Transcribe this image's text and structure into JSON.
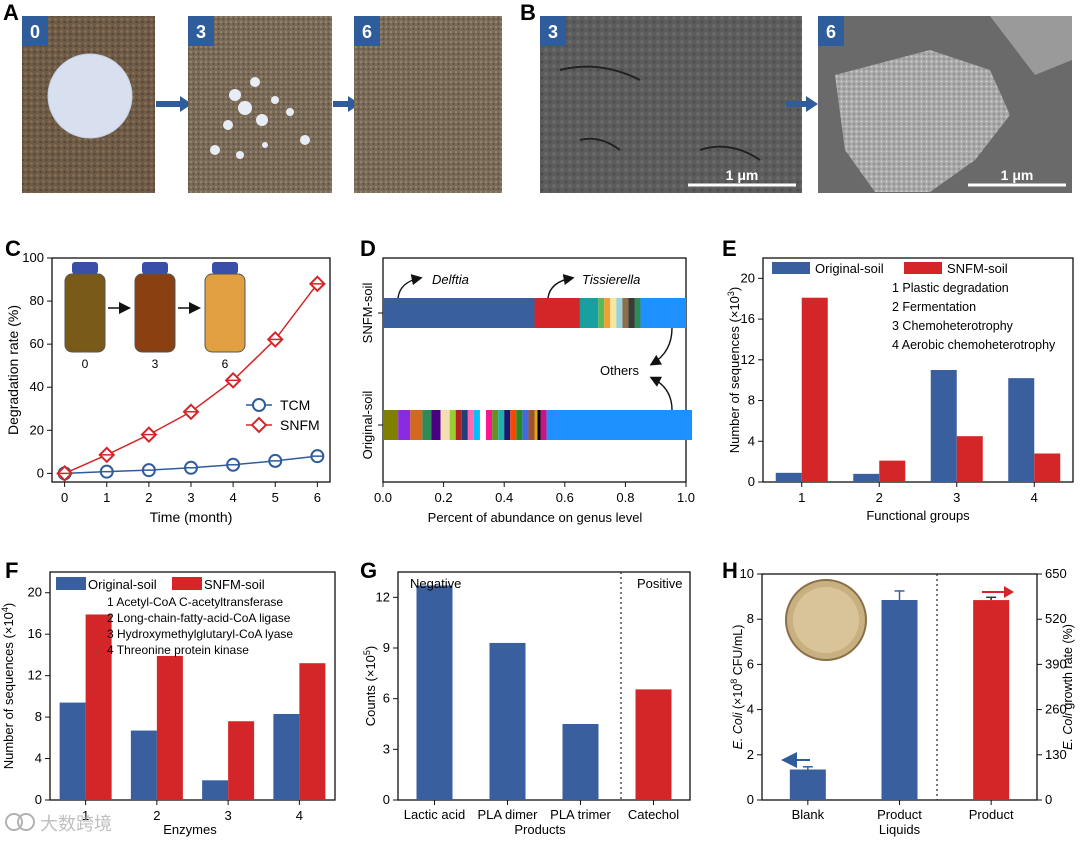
{
  "panel_labels": {
    "A": "A",
    "B": "B",
    "C": "C",
    "D": "D",
    "E": "E",
    "F": "F",
    "G": "G",
    "H": "H"
  },
  "photos": {
    "A": [
      {
        "label": "0"
      },
      {
        "label": "3"
      },
      {
        "label": "6"
      }
    ],
    "B": [
      {
        "label": "3",
        "scale": "1 μm"
      },
      {
        "label": "6",
        "scale": "1 μm"
      }
    ]
  },
  "colors": {
    "blue": "#3a5f9e",
    "red": "#d42628",
    "photo_label_bg": "#2f5c9a"
  },
  "watermark": "大数跨境",
  "chart_data": [
    {
      "panel": "C",
      "type": "line",
      "x": [
        0,
        1,
        2,
        3,
        4,
        5,
        6
      ],
      "series": [
        {
          "name": "TCM",
          "values": [
            0,
            0.8,
            1.5,
            2.6,
            4.0,
            5.8,
            8.0
          ],
          "color": "#2f5c9a",
          "marker": "circle"
        },
        {
          "name": "SNFM",
          "values": [
            0,
            8.6,
            18.0,
            28.6,
            43.2,
            62.2,
            88.0
          ],
          "color": "#d42628",
          "marker": "diamond"
        }
      ],
      "xlabel": "Time (month)",
      "ylabel": "Degradation rate (%)",
      "xlim": [
        -0.3,
        6.3
      ],
      "ylim": [
        -4,
        100
      ],
      "xticks": [
        0,
        1,
        2,
        3,
        4,
        5,
        6
      ],
      "yticks": [
        0,
        20,
        40,
        60,
        80,
        100
      ],
      "legend_position": "right",
      "inset_labels": [
        "0",
        "3",
        "6"
      ]
    },
    {
      "panel": "D",
      "type": "bar",
      "categories": [
        "SNFM-soil",
        "Original-soil"
      ],
      "xlabel": "Percent of abundance on genus level",
      "xlim": [
        0,
        1
      ],
      "xticks": [
        "0.0",
        "0.2",
        "0.4",
        "0.6",
        "0.8",
        "1.0"
      ],
      "annotations": [
        "Delftia",
        "Tissierella",
        "Others"
      ],
      "segments": {
        "SNFM-soil": [
          {
            "color": "#3a5f9e",
            "value": 0.5
          },
          {
            "color": "#d42628",
            "value": 0.15
          },
          {
            "color": "#18a0a0",
            "value": 0.06
          },
          {
            "color": "#5cb85c",
            "value": 0.02
          },
          {
            "color": "#f0a030",
            "value": 0.02
          },
          {
            "color": "#f5e79e",
            "value": 0.02
          },
          {
            "color": "#9ad0e0",
            "value": 0.02
          },
          {
            "color": "#8b6f47",
            "value": 0.02
          },
          {
            "color": "#3a3a3a",
            "value": 0.02
          },
          {
            "color": "#2e8b57",
            "value": 0.02
          },
          {
            "color": "#1e90ff",
            "value": 0.15
          }
        ],
        "Original-soil": [
          {
            "color": "#808000",
            "value": 0.05
          },
          {
            "color": "#8a2be2",
            "value": 0.04
          },
          {
            "color": "#d2691e",
            "value": 0.04
          },
          {
            "color": "#2e8b57",
            "value": 0.03
          },
          {
            "color": "#4b0082",
            "value": 0.03
          },
          {
            "color": "#f5deb3",
            "value": 0.03
          },
          {
            "color": "#9acd32",
            "value": 0.02
          },
          {
            "color": "#b22222",
            "value": 0.02
          },
          {
            "color": "#1e3f7a",
            "value": 0.02
          },
          {
            "color": "#ff69b4",
            "value": 0.02
          },
          {
            "color": "#00bfff",
            "value": 0.02
          },
          {
            "color": "#ffffff",
            "value": 0.02
          },
          {
            "color": "#ff1493",
            "value": 0.02
          },
          {
            "color": "#6b8e23",
            "value": 0.02
          },
          {
            "color": "#20b2aa",
            "value": 0.02
          },
          {
            "color": "#191970",
            "value": 0.02
          },
          {
            "color": "#ff4500",
            "value": 0.02
          },
          {
            "color": "#228b22",
            "value": 0.02
          },
          {
            "color": "#4169e1",
            "value": 0.02
          },
          {
            "color": "#a0522d",
            "value": 0.02
          },
          {
            "color": "#daa520",
            "value": 0.01
          },
          {
            "color": "#000000",
            "value": 0.01
          },
          {
            "color": "#c71585",
            "value": 0.02
          },
          {
            "color": "#1e90ff",
            "value": 0.48
          }
        ]
      }
    },
    {
      "panel": "E",
      "type": "bar",
      "categories": [
        "1",
        "2",
        "3",
        "4"
      ],
      "series": [
        {
          "name": "Original-soil",
          "values": [
            0.9,
            0.8,
            11.0,
            10.2
          ],
          "color": "#3a5f9e"
        },
        {
          "name": "SNFM-soil",
          "values": [
            18.1,
            2.1,
            4.5,
            2.8
          ],
          "color": "#d42628"
        }
      ],
      "xlabel": "Functional groups",
      "ylabel": "Number of sequences (×10",
      "ylabel_sup": "3",
      "ylabel_end": ")",
      "ylim": [
        0,
        22
      ],
      "yticks": [
        0,
        4,
        8,
        12,
        16,
        20
      ],
      "legend_notes": [
        "1 Plastic degradation",
        "2 Fermentation",
        "3 Chemoheterotrophy",
        "4 Aerobic chemoheterotrophy"
      ]
    },
    {
      "panel": "F",
      "type": "bar",
      "categories": [
        "1",
        "2",
        "3",
        "4"
      ],
      "series": [
        {
          "name": "Original-soil",
          "values": [
            9.4,
            6.7,
            1.9,
            8.3
          ],
          "color": "#3a5f9e"
        },
        {
          "name": "SNFM-soil",
          "values": [
            17.9,
            13.9,
            7.6,
            13.2
          ],
          "color": "#d42628"
        }
      ],
      "xlabel": "Enzymes",
      "ylabel": "Number of sequences (×10",
      "ylabel_sup": "4",
      "ylabel_end": ")",
      "ylim": [
        0,
        22
      ],
      "yticks": [
        0,
        4,
        8,
        12,
        16,
        20
      ],
      "legend_notes": [
        "1 Acetyl-CoA C-acetyltransferase",
        "2 Long-chain-fatty-acid-CoA ligase",
        "3 Hydroxymethylglutaryl-CoA lyase",
        "4 Threonine protein kinase"
      ]
    },
    {
      "panel": "G",
      "type": "bar",
      "categories": [
        "Lactic acid",
        "PLA dimer",
        "PLA trimer",
        "Catechol"
      ],
      "values": [
        12.7,
        9.3,
        4.5,
        6.55
      ],
      "colors": [
        "#3a5f9e",
        "#3a5f9e",
        "#3a5f9e",
        "#d42628"
      ],
      "xlabel": "Products",
      "ylabel": "Counts (×10",
      "ylabel_sup": "5",
      "ylabel_end": ")",
      "ylim": [
        0,
        13.5
      ],
      "yticks": [
        0,
        3,
        6,
        9,
        12
      ],
      "annotations": [
        "Negative",
        "Positive"
      ]
    },
    {
      "panel": "H",
      "type": "bar",
      "categories": [
        "Blank",
        "Product Liquids",
        "Product"
      ],
      "category_lines": [
        [
          "Blank"
        ],
        [
          "Product",
          "Liquids"
        ],
        [
          "Product"
        ]
      ],
      "left_series": {
        "name": "E. Coli",
        "values": [
          1.35,
          8.85
        ],
        "errors": [
          0.12,
          0.4
        ],
        "color": "#3a5f9e"
      },
      "right_series": {
        "name": "E. Coli growth rate",
        "values": [
          575
        ],
        "errors": [
          8
        ],
        "color": "#d42628"
      },
      "ylabel_left_italic": "E. Coli",
      "ylabel_left": " (×10",
      "ylabel_left_sup": "8",
      "ylabel_left_end": " CFU/mL)",
      "ylabel_right_italic": "E. Coli",
      "ylabel_right": " growth rate (%)",
      "ylim_left": [
        0,
        10
      ],
      "yticks_left": [
        0,
        2,
        4,
        6,
        8,
        10
      ],
      "ylim_right": [
        0,
        650
      ],
      "yticks_right": [
        0,
        130,
        260,
        390,
        520,
        650
      ]
    }
  ]
}
